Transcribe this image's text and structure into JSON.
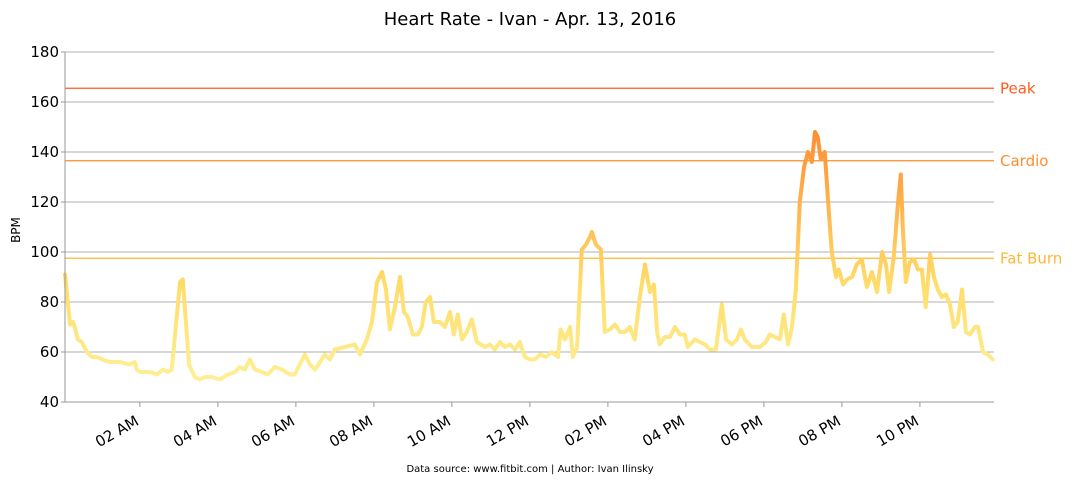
{
  "chart_data": {
    "type": "line",
    "title": "Heart Rate - Ivan - Apr. 13, 2016",
    "ylabel": "BPM",
    "footer": "Data source: www.fitbit.com | Author: Ivan Ilinsky",
    "ylim": [
      40,
      180
    ],
    "yticks": [
      40,
      60,
      80,
      100,
      120,
      140,
      160,
      180
    ],
    "xlim": [
      0.08,
      23.9
    ],
    "xticks": [
      {
        "value": 2,
        "label": "02 AM"
      },
      {
        "value": 4,
        "label": "04 AM"
      },
      {
        "value": 6,
        "label": "06 AM"
      },
      {
        "value": 8,
        "label": "08 AM"
      },
      {
        "value": 10,
        "label": "10 AM"
      },
      {
        "value": 12,
        "label": "12 PM"
      },
      {
        "value": 14,
        "label": "02 PM"
      },
      {
        "value": 16,
        "label": "04 PM"
      },
      {
        "value": 18,
        "label": "06 PM"
      },
      {
        "value": 20,
        "label": "08 PM"
      },
      {
        "value": 22,
        "label": "10 PM"
      }
    ],
    "grid": true,
    "colormap": [
      "#fef3a0",
      "#ffdd6a",
      "#ffa040",
      "#ff6a1a"
    ],
    "zones": [
      {
        "name": "Peak",
        "value": 165.5,
        "color": "#ff5a1f"
      },
      {
        "name": "Cardio",
        "value": 136.5,
        "color": "#ff8c2a"
      },
      {
        "name": "Fat Burn",
        "value": 97.5,
        "color": "#ffb733"
      }
    ],
    "x": [
      0.08,
      0.15,
      0.21,
      0.28,
      0.33,
      0.41,
      0.51,
      0.64,
      0.77,
      0.9,
      1.03,
      1.23,
      1.49,
      1.74,
      1.87,
      1.92,
      2.0,
      2.26,
      2.44,
      2.59,
      2.72,
      2.82,
      2.92,
      3.03,
      3.1,
      3.18,
      3.26,
      3.41,
      3.54,
      3.67,
      3.85,
      4.05,
      4.26,
      4.44,
      4.56,
      4.69,
      4.82,
      4.95,
      5.13,
      5.28,
      5.46,
      5.64,
      5.85,
      5.97,
      6.1,
      6.23,
      6.36,
      6.49,
      6.62,
      6.74,
      6.87,
      7.0,
      7.26,
      7.51,
      7.64,
      7.82,
      7.95,
      8.08,
      8.21,
      8.31,
      8.41,
      8.54,
      8.67,
      8.77,
      8.87,
      9.0,
      9.13,
      9.23,
      9.33,
      9.44,
      9.54,
      9.69,
      9.82,
      9.95,
      10.05,
      10.15,
      10.26,
      10.38,
      10.51,
      10.64,
      10.85,
      10.97,
      11.1,
      11.23,
      11.36,
      11.49,
      11.62,
      11.74,
      11.87,
      12.0,
      12.13,
      12.26,
      12.41,
      12.56,
      12.72,
      12.79,
      12.9,
      13.03,
      13.1,
      13.21,
      13.33,
      13.44,
      13.54,
      13.59,
      13.69,
      13.82,
      13.92,
      14.05,
      14.18,
      14.31,
      14.44,
      14.56,
      14.69,
      14.82,
      14.95,
      15.08,
      15.18,
      15.26,
      15.33,
      15.46,
      15.59,
      15.72,
      15.85,
      15.97,
      16.05,
      16.23,
      16.36,
      16.49,
      16.62,
      16.77,
      16.92,
      17.03,
      17.18,
      17.31,
      17.41,
      17.51,
      17.69,
      17.9,
      18.05,
      18.15,
      18.28,
      18.41,
      18.51,
      18.62,
      18.72,
      18.82,
      18.92,
      19.03,
      19.13,
      19.23,
      19.31,
      19.38,
      19.46,
      19.56,
      19.67,
      19.74,
      19.85,
      19.92,
      20.03,
      20.13,
      20.26,
      20.38,
      20.51,
      20.64,
      20.77,
      20.9,
      21.03,
      21.13,
      21.21,
      21.33,
      21.44,
      21.51,
      21.56,
      21.64,
      21.74,
      21.85,
      21.95,
      22.05,
      22.15,
      22.26,
      22.36,
      22.46,
      22.56,
      22.67,
      22.77,
      22.87,
      22.97,
      23.08,
      23.18,
      23.28,
      23.41,
      23.49,
      23.62,
      23.74,
      23.87
    ],
    "series": [
      {
        "name": "Heart rate",
        "values": [
          91,
          80,
          71,
          72,
          70,
          65,
          64,
          60,
          58,
          58,
          57,
          56,
          56,
          55,
          56,
          53,
          52,
          52,
          51,
          53,
          52,
          53,
          70,
          88,
          89,
          72,
          55,
          50,
          49,
          50,
          50,
          49,
          51,
          52,
          54,
          53,
          57,
          53,
          52,
          51,
          54,
          53,
          51,
          51,
          55,
          59,
          55,
          53,
          56,
          59,
          57,
          61,
          62,
          63,
          59,
          65,
          72,
          88,
          92,
          85,
          69,
          78,
          90,
          76,
          74,
          67,
          67,
          70,
          80,
          82,
          72,
          72,
          70,
          76,
          67,
          75,
          65,
          68,
          73,
          64,
          62,
          63,
          61,
          64,
          62,
          63,
          61,
          64,
          58,
          57,
          57,
          59,
          58,
          60,
          58,
          69,
          65,
          70,
          58,
          62,
          101,
          103,
          106,
          108,
          103,
          101,
          68,
          69,
          71,
          68,
          68,
          70,
          65,
          82,
          95,
          84,
          87,
          68,
          63,
          66,
          66,
          70,
          67,
          67,
          62,
          65,
          64,
          63,
          61,
          61,
          79,
          65,
          63,
          65,
          69,
          65,
          62,
          62,
          64,
          67,
          66,
          65,
          75,
          63,
          70,
          85,
          120,
          134,
          140,
          136,
          148,
          146,
          137,
          140,
          115,
          100,
          90,
          93,
          87,
          89,
          90,
          95,
          97,
          86,
          92,
          84,
          100,
          95,
          84,
          98,
          120,
          131,
          110,
          88,
          96,
          97,
          93,
          93,
          78,
          99,
          90,
          85,
          82,
          83,
          79,
          70,
          72,
          85,
          68,
          67,
          70,
          70,
          60,
          59,
          57
        ]
      }
    ]
  }
}
